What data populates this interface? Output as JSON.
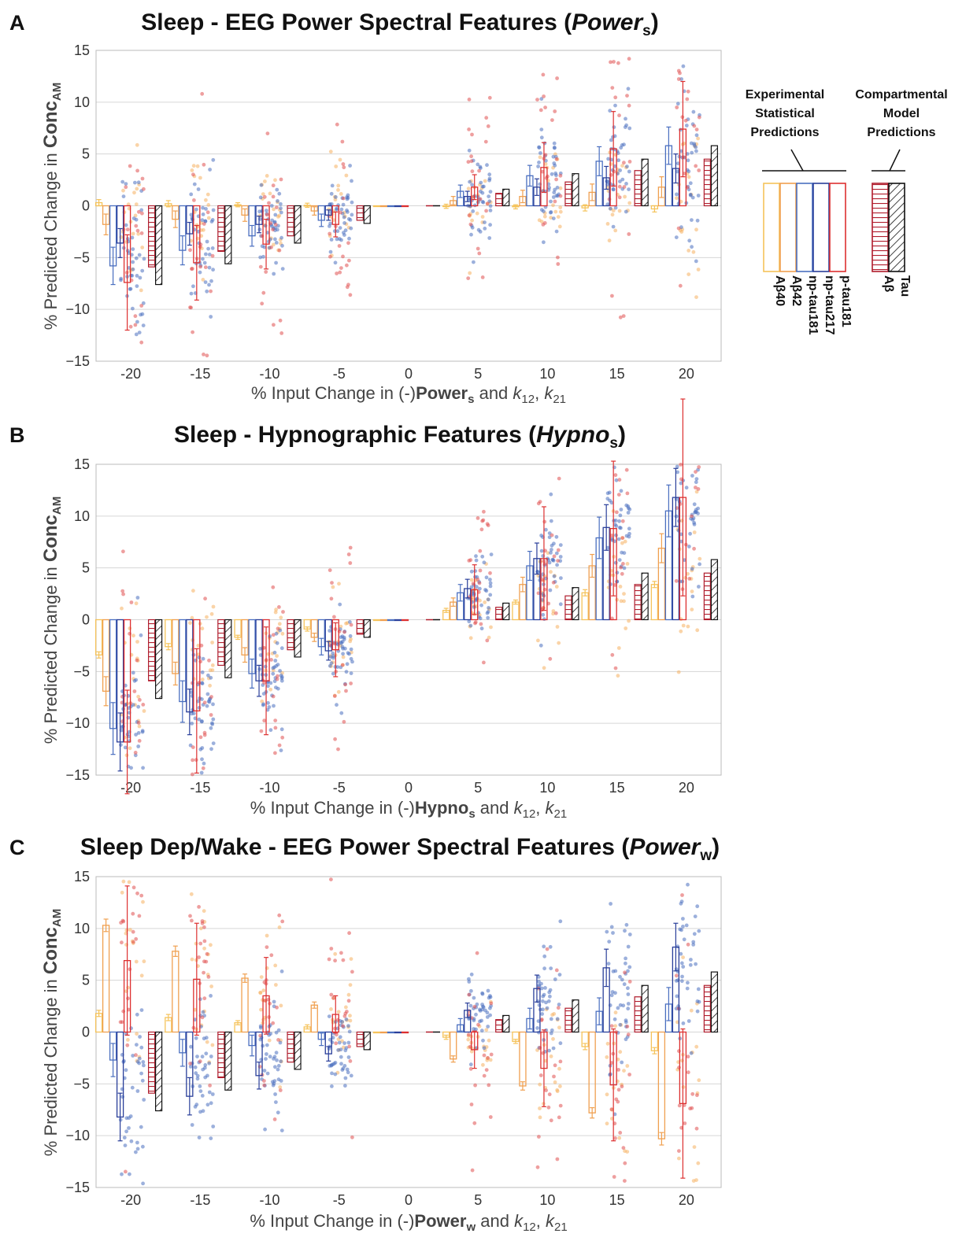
{
  "chart_data": [
    {
      "panel": "A",
      "type": "bar",
      "title": "Sleep - EEG Power Spectral Features (Powers)",
      "title_parts": [
        "Sleep - EEG Power Spectral Features (",
        "Power",
        "s",
        ")"
      ],
      "xlabel": "% Input Change in (-)Powers and k12, k21",
      "xlabel_parts": [
        "% Input Change in (-)",
        "Power",
        "s",
        " and ",
        "k",
        "12",
        ", ",
        "k",
        "21"
      ],
      "ylabel": "% Predicted Change in ConcAM",
      "ylabel_parts": [
        "% Predicted Change in ",
        "Conc",
        "AM"
      ],
      "categories": [
        "-20",
        "-15",
        "-10",
        "-5",
        "0",
        "5",
        "10",
        "15",
        "20"
      ],
      "yticks": [
        "15",
        "10",
        "5",
        "0",
        "−5",
        "−10",
        "−15"
      ],
      "ylim": [
        -15,
        15
      ],
      "grid": true,
      "series": [
        {
          "name": "Aβ40",
          "group": "experimental",
          "values": [
            0.3,
            0.2,
            0.1,
            0.05,
            0,
            -0.05,
            -0.1,
            -0.2,
            -0.3
          ],
          "errors": [
            0.3,
            0.3,
            0.2,
            0.2,
            0,
            0.2,
            0.2,
            0.3,
            0.3
          ]
        },
        {
          "name": "Aβ42",
          "group": "experimental",
          "values": [
            -1.8,
            -1.3,
            -0.9,
            -0.5,
            0,
            0.5,
            0.9,
            1.3,
            1.8
          ],
          "errors": [
            1.0,
            0.8,
            0.6,
            0.4,
            0,
            0.4,
            0.6,
            0.8,
            1.0
          ]
        },
        {
          "name": "np-tau181",
          "group": "experimental",
          "values": [
            -5.8,
            -4.3,
            -2.9,
            -1.4,
            0,
            1.4,
            2.9,
            4.3,
            5.8
          ],
          "errors": [
            1.8,
            1.4,
            1.0,
            0.6,
            0,
            0.6,
            1.0,
            1.4,
            1.8
          ]
        },
        {
          "name": "np-tau217",
          "group": "experimental",
          "values": [
            -3.6,
            -2.7,
            -1.8,
            -0.9,
            0,
            0.9,
            1.8,
            2.7,
            3.6
          ],
          "errors": [
            1.4,
            1.1,
            0.8,
            0.5,
            0,
            0.5,
            0.8,
            1.1,
            1.4
          ]
        },
        {
          "name": "p-tau181",
          "group": "experimental",
          "values": [
            -7.4,
            -5.5,
            -3.7,
            -1.8,
            0,
            1.8,
            3.7,
            5.5,
            7.4
          ],
          "errors": [
            4.6,
            3.6,
            2.4,
            1.2,
            0,
            1.2,
            2.4,
            3.6,
            4.6
          ]
        },
        {
          "name": "Aβ",
          "group": "model",
          "values": [
            -5.9,
            -4.4,
            -2.9,
            -1.4,
            0,
            1.2,
            2.3,
            3.4,
            4.5
          ]
        },
        {
          "name": "Tau",
          "group": "model",
          "values": [
            -7.6,
            -5.6,
            -3.6,
            -1.7,
            0,
            1.6,
            3.1,
            4.5,
            5.8
          ]
        }
      ]
    },
    {
      "panel": "B",
      "type": "bar",
      "title": "Sleep - Hypnographic Features (Hypnos)",
      "title_parts": [
        "Sleep - Hypnographic Features (",
        "Hypno",
        "s",
        ")"
      ],
      "xlabel": "% Input Change in (-)Hypnos and k12, k21",
      "xlabel_parts": [
        "% Input Change in (-)",
        "Hypno",
        "s",
        " and ",
        "k",
        "12",
        ", ",
        "k",
        "21"
      ],
      "ylabel": "% Predicted Change in ConcAM",
      "ylabel_parts": [
        "% Predicted Change in ",
        "Conc",
        "AM"
      ],
      "categories": [
        "-20",
        "-15",
        "-10",
        "-5",
        "0",
        "5",
        "10",
        "15",
        "20"
      ],
      "yticks": [
        "15",
        "10",
        "5",
        "0",
        "−5",
        "−10",
        "−15"
      ],
      "ylim": [
        -15,
        15
      ],
      "grid": true,
      "series": [
        {
          "name": "Aβ40",
          "group": "experimental",
          "values": [
            -3.4,
            -2.6,
            -1.7,
            -0.9,
            0,
            0.9,
            1.7,
            2.6,
            3.4
          ],
          "errors": [
            0.3,
            0.3,
            0.2,
            0.2,
            0,
            0.2,
            0.2,
            0.3,
            0.3
          ]
        },
        {
          "name": "Aβ42",
          "group": "experimental",
          "values": [
            -6.9,
            -5.2,
            -3.4,
            -1.7,
            0,
            1.7,
            3.4,
            5.2,
            6.9
          ],
          "errors": [
            1.4,
            1.1,
            0.7,
            0.4,
            0,
            0.4,
            0.7,
            1.1,
            1.4
          ]
        },
        {
          "name": "np-tau181",
          "group": "experimental",
          "values": [
            -10.5,
            -7.9,
            -5.2,
            -2.6,
            0,
            2.6,
            5.2,
            7.9,
            10.5
          ],
          "errors": [
            2.5,
            2.0,
            1.4,
            0.8,
            0,
            0.8,
            1.4,
            2.0,
            2.5
          ]
        },
        {
          "name": "np-tau217",
          "group": "experimental",
          "values": [
            -11.8,
            -8.9,
            -5.9,
            -3.0,
            0,
            3.0,
            5.9,
            8.9,
            11.8
          ],
          "errors": [
            2.8,
            2.2,
            1.5,
            0.9,
            0,
            0.9,
            1.5,
            2.2,
            2.8
          ]
        },
        {
          "name": "p-tau181",
          "group": "experimental",
          "values": [
            -11.8,
            -8.8,
            -5.9,
            -2.9,
            0,
            2.9,
            5.9,
            8.8,
            11.8
          ],
          "errors": [
            5.0,
            6.0,
            5.2,
            2.6,
            0,
            2.4,
            5.0,
            6.5,
            9.5
          ]
        },
        {
          "name": "Aβ",
          "group": "model",
          "values": [
            -5.9,
            -4.4,
            -2.9,
            -1.4,
            0,
            1.2,
            2.3,
            3.4,
            4.5
          ]
        },
        {
          "name": "Tau",
          "group": "model",
          "values": [
            -7.6,
            -5.6,
            -3.6,
            -1.7,
            0,
            1.6,
            3.1,
            4.5,
            5.8
          ]
        }
      ]
    },
    {
      "panel": "C",
      "type": "bar",
      "title": "Sleep Dep/Wake - EEG Power Spectral Features (Powerw)",
      "title_parts": [
        "Sleep Dep/Wake - EEG Power Spectral Features (",
        "Power",
        "w",
        ")"
      ],
      "xlabel": "% Input Change in (-)Powerw and k12, k21",
      "xlabel_parts": [
        "% Input Change in (-)",
        "Power",
        "w",
        " and ",
        "k",
        "12",
        ", ",
        "k",
        "21"
      ],
      "ylabel": "% Predicted Change in ConcAM",
      "ylabel_parts": [
        "% Predicted Change in ",
        "Conc",
        "AM"
      ],
      "categories": [
        "-20",
        "-15",
        "-10",
        "-5",
        "0",
        "5",
        "10",
        "15",
        "20"
      ],
      "yticks": [
        "15",
        "10",
        "5",
        "0",
        "−5",
        "−10",
        "−15"
      ],
      "ylim": [
        -15,
        15
      ],
      "grid": true,
      "series": [
        {
          "name": "Aβ40",
          "group": "experimental",
          "values": [
            1.8,
            1.4,
            0.9,
            0.5,
            0,
            -0.5,
            -0.9,
            -1.4,
            -1.8
          ],
          "errors": [
            0.3,
            0.3,
            0.2,
            0.2,
            0,
            0.2,
            0.2,
            0.3,
            0.3
          ]
        },
        {
          "name": "Aβ42",
          "group": "experimental",
          "values": [
            10.3,
            7.8,
            5.2,
            2.6,
            0,
            -2.6,
            -5.2,
            -7.8,
            -10.3
          ],
          "errors": [
            0.6,
            0.5,
            0.4,
            0.3,
            0,
            0.3,
            0.4,
            0.5,
            0.6
          ]
        },
        {
          "name": "np-tau181",
          "group": "experimental",
          "values": [
            -2.7,
            -2.0,
            -1.3,
            -0.7,
            0,
            0.7,
            1.3,
            2.0,
            2.7
          ],
          "errors": [
            1.6,
            1.3,
            1.0,
            0.6,
            0,
            0.6,
            1.0,
            1.3,
            1.6
          ]
        },
        {
          "name": "np-tau217",
          "group": "experimental",
          "values": [
            -8.2,
            -6.2,
            -4.2,
            -2.1,
            0,
            2.1,
            4.2,
            6.2,
            8.2
          ],
          "errors": [
            2.3,
            1.8,
            1.3,
            0.7,
            0,
            0.7,
            1.3,
            1.8,
            2.3
          ]
        },
        {
          "name": "p-tau181",
          "group": "experimental",
          "values": [
            6.9,
            5.1,
            3.5,
            1.7,
            0,
            -1.7,
            -3.5,
            -5.1,
            -6.9
          ],
          "errors": [
            7.2,
            5.4,
            3.7,
            1.8,
            0,
            1.8,
            3.7,
            5.4,
            7.2
          ]
        },
        {
          "name": "Aβ",
          "group": "model",
          "values": [
            -5.9,
            -4.4,
            -2.9,
            -1.4,
            0,
            1.2,
            2.3,
            3.4,
            4.5
          ]
        },
        {
          "name": "Tau",
          "group": "model",
          "values": [
            -7.6,
            -5.6,
            -3.6,
            -1.7,
            0,
            1.6,
            3.1,
            4.5,
            5.8
          ]
        }
      ]
    }
  ],
  "legend": {
    "experimental_title": [
      "Experimental",
      "Statistical",
      "Predictions"
    ],
    "model_title": [
      "Compartmental",
      "Model",
      "Predictions"
    ],
    "experimental_entries": [
      "Aβ40",
      "Aβ42",
      "np-tau181",
      "np-tau217",
      "p-tau181"
    ],
    "model_entries": [
      "Aβ",
      "Tau"
    ]
  },
  "colors": {
    "Aβ40": "#f5c35a",
    "Aβ42": "#f0a050",
    "np-tau181": "#4a6fc0",
    "np-tau217": "#2a3f9a",
    "p-tau181": "#dd3030",
    "Aβ": "#b01c2c",
    "Tau": "#111111",
    "scatter_blue": "#4a6fc0",
    "scatter_red": "#e05050",
    "scatter_orange": "#f5b060",
    "grid": "#d6d6d6",
    "frame": "#bbbbbb"
  }
}
